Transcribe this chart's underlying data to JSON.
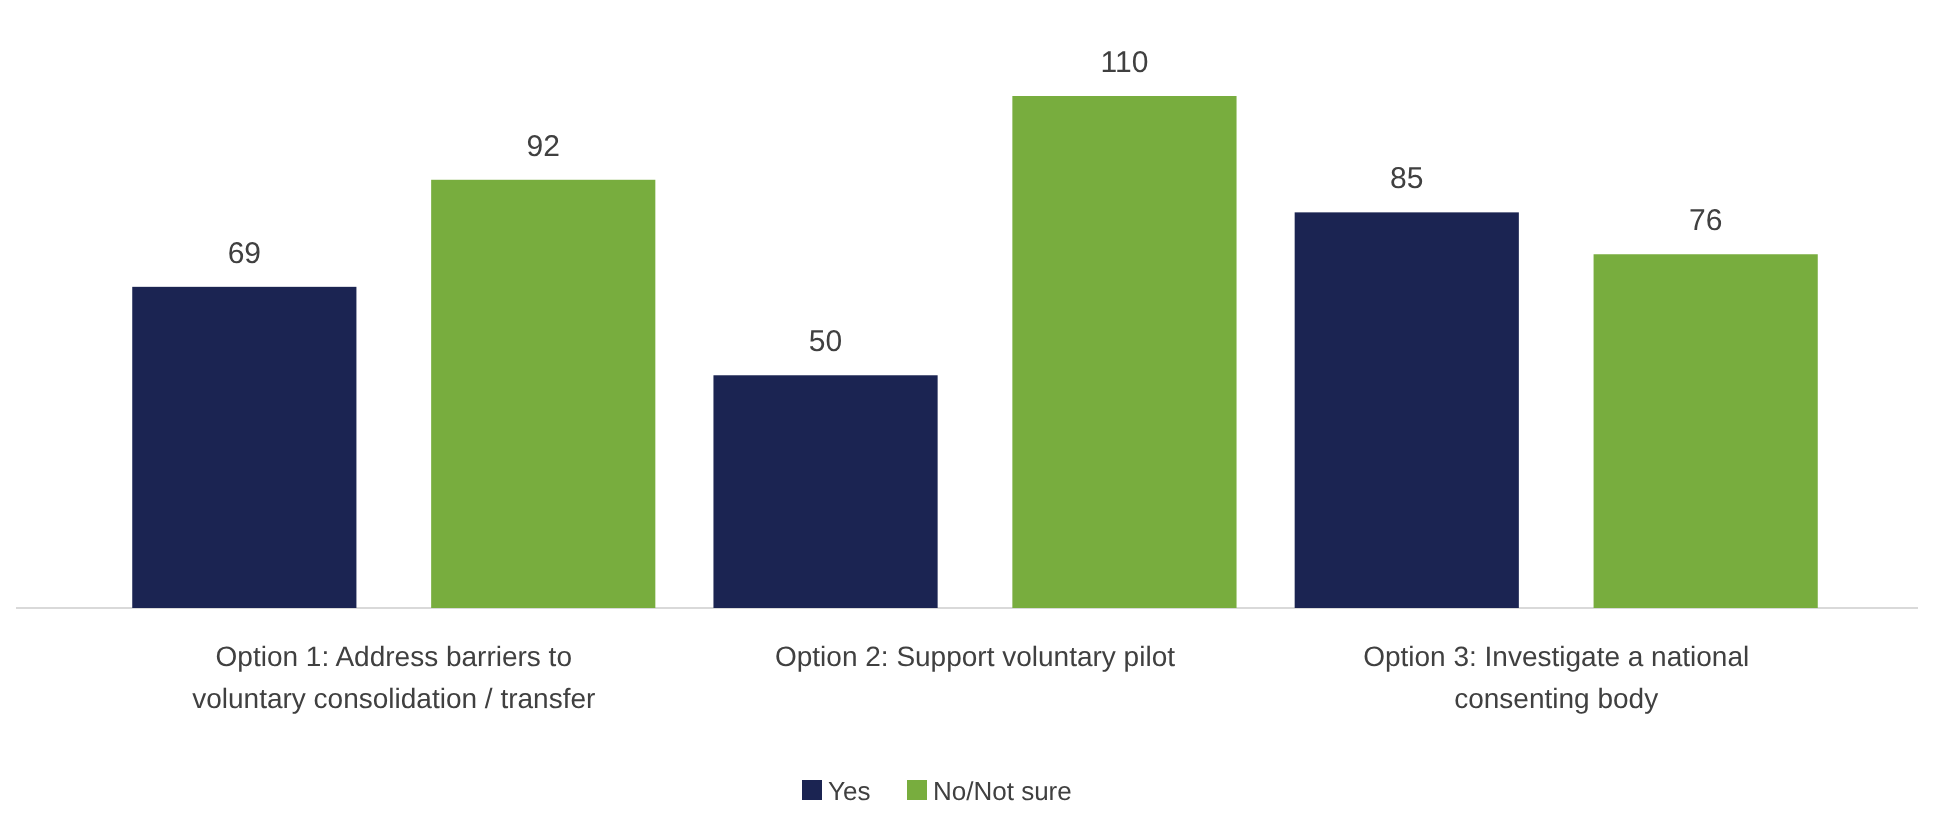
{
  "chart_data": {
    "type": "bar",
    "categories": [
      "Option 1: Address barriers to voluntary consolidation / transfer",
      "Option 2: Support voluntary pilot",
      "Option 3: Investigate a national consenting body"
    ],
    "series": [
      {
        "name": "Yes",
        "color": "#1b2452",
        "values": [
          69,
          50,
          85
        ]
      },
      {
        "name": "No/Not sure",
        "color": "#78ad3e",
        "values": [
          92,
          110,
          76
        ]
      }
    ],
    "data_labels": true,
    "legend": "bottom"
  }
}
